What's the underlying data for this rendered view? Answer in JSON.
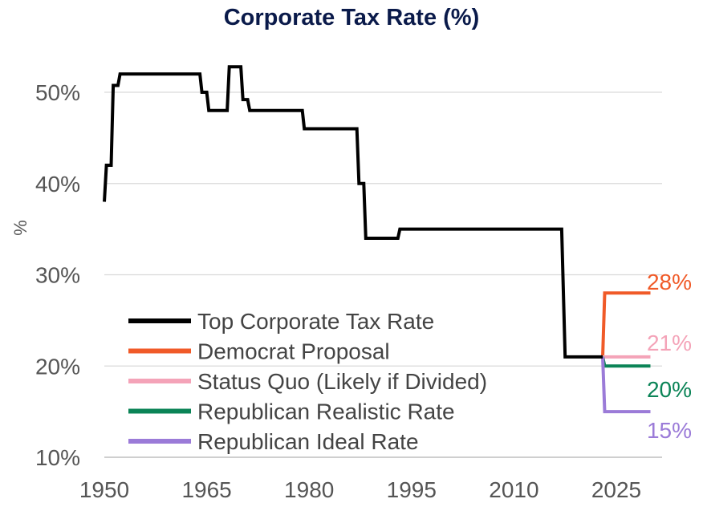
{
  "title": "Corporate Tax Rate (%)",
  "chart_data": {
    "type": "line",
    "title": "Corporate Tax Rate (%)",
    "xlabel": "",
    "ylabel": "%",
    "xlim": [
      1950,
      2030
    ],
    "ylim": [
      10,
      55
    ],
    "x_ticks": [
      1950,
      1965,
      1980,
      1995,
      2010,
      2025
    ],
    "x_tick_labels": [
      "1950",
      "1965",
      "1980",
      "1995",
      "2010",
      "2025"
    ],
    "y_ticks": [
      10,
      20,
      30,
      40,
      50
    ],
    "y_tick_labels": [
      "10%",
      "20%",
      "30%",
      "40%",
      "50%"
    ],
    "grid": "horizontal",
    "legend_position": "bottom-left",
    "series": [
      {
        "name": "Top Corporate Tax Rate",
        "color": "#000000",
        "step": true,
        "points": [
          [
            1950,
            38
          ],
          [
            1950.3,
            42
          ],
          [
            1951,
            42
          ],
          [
            1951.3,
            50.75
          ],
          [
            1952,
            50.75
          ],
          [
            1952.3,
            52
          ],
          [
            1964,
            52
          ],
          [
            1964.3,
            50
          ],
          [
            1965,
            50
          ],
          [
            1965.3,
            48
          ],
          [
            1968,
            48
          ],
          [
            1968.3,
            52.8
          ],
          [
            1970,
            52.8
          ],
          [
            1970.3,
            49.2
          ],
          [
            1971,
            49.2
          ],
          [
            1971.3,
            48
          ],
          [
            1979,
            48
          ],
          [
            1979.3,
            46
          ],
          [
            1987,
            46
          ],
          [
            1987.3,
            40
          ],
          [
            1988,
            40
          ],
          [
            1988.3,
            34
          ],
          [
            1993,
            34
          ],
          [
            1993.3,
            35
          ],
          [
            2017,
            35
          ],
          [
            2017.5,
            21
          ],
          [
            2023,
            21
          ]
        ]
      },
      {
        "name": "Democrat Proposal",
        "color": "#f05a28",
        "end_label": "28%",
        "points": [
          [
            2023,
            21
          ],
          [
            2023.3,
            28
          ],
          [
            2030,
            28
          ]
        ]
      },
      {
        "name": "Status Quo (Likely if Divided)",
        "color": "#f4a3b8",
        "end_label": "21%",
        "points": [
          [
            2023,
            21
          ],
          [
            2030,
            21
          ]
        ]
      },
      {
        "name": "Republican Realistic Rate",
        "color": "#0b8457",
        "end_label": "20%",
        "points": [
          [
            2023,
            21
          ],
          [
            2023.3,
            20
          ],
          [
            2030,
            20
          ]
        ]
      },
      {
        "name": "Republican Ideal Rate",
        "color": "#9b7bd8",
        "end_label": "15%",
        "points": [
          [
            2023,
            21
          ],
          [
            2023.3,
            15
          ],
          [
            2030,
            15
          ]
        ]
      }
    ]
  }
}
